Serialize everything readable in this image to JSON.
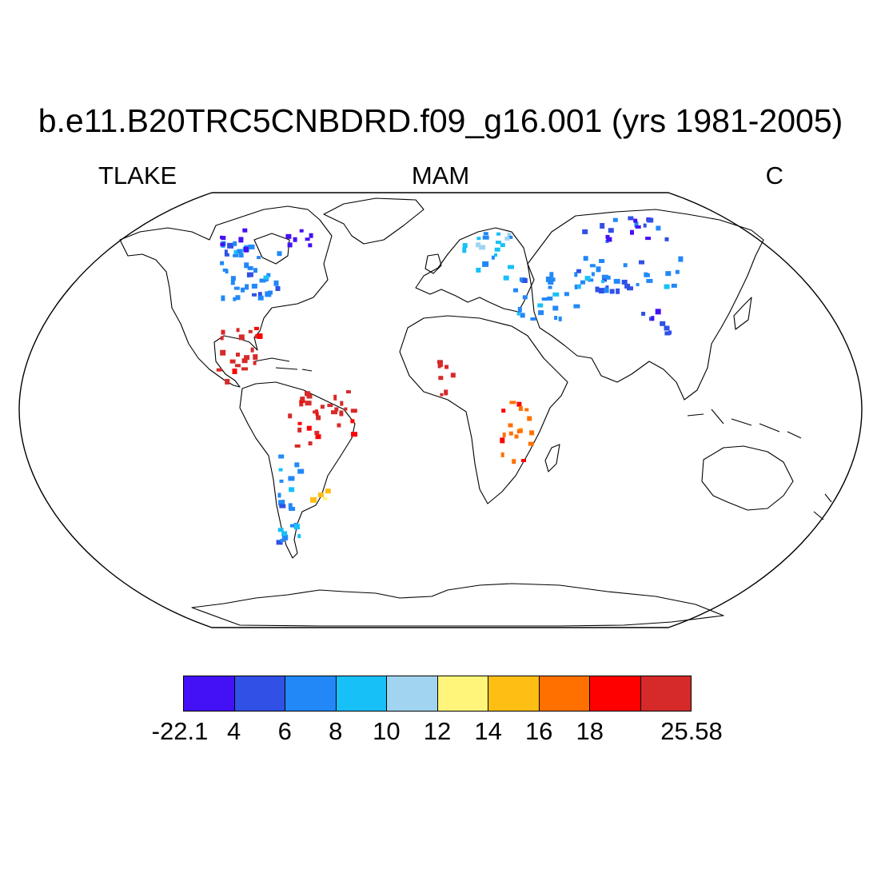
{
  "title": "b.e11.B20TRC5CNBDRD.f09_g16.001 (yrs 1981-2005)",
  "subtitle_left": "TLAKE",
  "subtitle_center": "MAM",
  "subtitle_right": "C",
  "colorbar": {
    "colors": [
      "#4410f5",
      "#3050e6",
      "#2288f8",
      "#18c0f8",
      "#a0d4f0",
      "#fff57a",
      "#ffbe14",
      "#ff7000",
      "#ff0000",
      "#d62a2a"
    ],
    "labels": [
      "-22.1",
      "4",
      "6",
      "8",
      "10",
      "12",
      "14",
      "16",
      "18",
      "25.58"
    ]
  },
  "map": {
    "projection": "Robinson",
    "value_range": [
      -22.1,
      25.58
    ],
    "regions": [
      {
        "region": "Canada / Great Lakes",
        "color_index": 2
      },
      {
        "region": "Arctic Canada",
        "color_index": 0
      },
      {
        "region": "Scandinavia",
        "color_index": 3
      },
      {
        "region": "Siberia",
        "color_index": 1
      },
      {
        "region": "Central Asia",
        "color_index": 2
      },
      {
        "region": "Southern Patagonia",
        "color_index": 2
      },
      {
        "region": "Central America",
        "color_index": 9
      },
      {
        "region": "Amazon",
        "color_index": 9
      },
      {
        "region": "East African Rift",
        "color_index": 7
      },
      {
        "region": "West Africa",
        "color_index": 9
      },
      {
        "region": "Florida",
        "color_index": 8
      },
      {
        "region": "Rio de la Plata",
        "color_index": 6
      }
    ]
  }
}
